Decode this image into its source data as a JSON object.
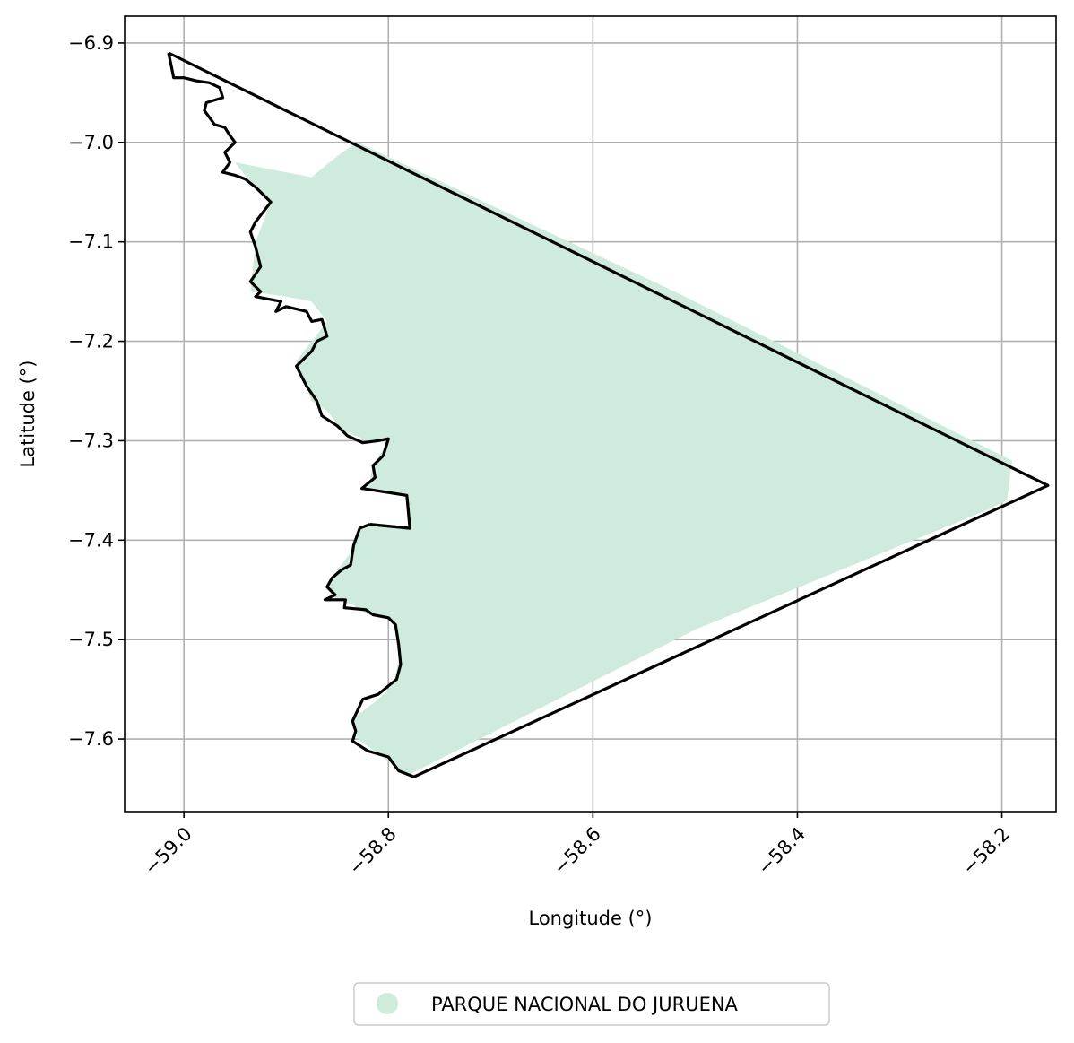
{
  "chart_data": {
    "type": "map",
    "title": "",
    "xlabel": "Longitude (°)",
    "ylabel": "Latitude (°)",
    "xlim": [
      -59.058,
      -58.147
    ],
    "ylim": [
      -7.673,
      -6.873
    ],
    "xticks": [
      -59.0,
      -58.8,
      -58.6,
      -58.4,
      -58.2
    ],
    "xtick_labels": [
      "−59.0",
      "−58.8",
      "−58.6",
      "−58.4",
      "−58.2"
    ],
    "yticks": [
      -6.9,
      -7.0,
      -7.1,
      -7.2,
      -7.3,
      -7.4,
      -7.5,
      -7.6
    ],
    "ytick_labels": [
      "−6.9",
      "−7.0",
      "−7.1",
      "−7.2",
      "−7.3",
      "−7.4",
      "−7.5",
      "−7.6"
    ],
    "grid": true,
    "legend_position": "bottom-center",
    "series": [
      {
        "name": "PARQUE NACIONAL DO JURUENA",
        "fill_color": "#cfebdd",
        "edge_color": "#000000",
        "fill_polygon": [
          [
            -58.95,
            -7.02
          ],
          [
            -58.9,
            -7.03
          ],
          [
            -58.875,
            -7.035
          ],
          [
            -58.86,
            -7.022
          ],
          [
            -58.845,
            -7.01
          ],
          [
            -58.83,
            -7.0
          ],
          [
            -58.52,
            -7.15
          ],
          [
            -58.19,
            -7.32
          ],
          [
            -58.195,
            -7.36
          ],
          [
            -58.215,
            -7.37
          ],
          [
            -58.5,
            -7.49
          ],
          [
            -58.78,
            -7.636
          ],
          [
            -58.79,
            -7.63
          ],
          [
            -58.81,
            -7.615
          ],
          [
            -58.83,
            -7.6
          ],
          [
            -58.835,
            -7.58
          ],
          [
            -58.81,
            -7.56
          ],
          [
            -58.795,
            -7.545
          ],
          [
            -58.79,
            -7.52
          ],
          [
            -58.795,
            -7.48
          ],
          [
            -58.82,
            -7.475
          ],
          [
            -58.835,
            -7.465
          ],
          [
            -58.85,
            -7.46
          ],
          [
            -58.86,
            -7.45
          ],
          [
            -58.85,
            -7.43
          ],
          [
            -58.835,
            -7.41
          ],
          [
            -58.83,
            -7.39
          ],
          [
            -58.82,
            -7.385
          ],
          [
            -58.78,
            -7.385
          ],
          [
            -58.78,
            -7.355
          ],
          [
            -58.82,
            -7.35
          ],
          [
            -58.815,
            -7.325
          ],
          [
            -58.8,
            -7.3
          ],
          [
            -58.82,
            -7.3
          ],
          [
            -58.845,
            -7.29
          ],
          [
            -58.86,
            -7.27
          ],
          [
            -58.875,
            -7.26
          ],
          [
            -58.89,
            -7.22
          ],
          [
            -58.875,
            -7.2
          ],
          [
            -58.86,
            -7.18
          ],
          [
            -58.875,
            -7.16
          ],
          [
            -58.9,
            -7.155
          ],
          [
            -58.935,
            -7.15
          ],
          [
            -58.93,
            -7.1
          ],
          [
            -58.915,
            -7.06
          ],
          [
            -58.935,
            -7.04
          ],
          [
            -58.95,
            -7.02
          ]
        ],
        "outline": [
          [
            -59.015,
            -6.91
          ],
          [
            -59.012,
            -6.925
          ],
          [
            -59.01,
            -6.935
          ],
          [
            -59.0,
            -6.935
          ],
          [
            -58.988,
            -6.938
          ],
          [
            -58.975,
            -6.94
          ],
          [
            -58.965,
            -6.945
          ],
          [
            -58.962,
            -6.955
          ],
          [
            -58.978,
            -6.96
          ],
          [
            -58.98,
            -6.968
          ],
          [
            -58.975,
            -6.975
          ],
          [
            -58.97,
            -6.982
          ],
          [
            -58.96,
            -6.985
          ],
          [
            -58.955,
            -6.993
          ],
          [
            -58.95,
            -7.0
          ],
          [
            -58.96,
            -7.01
          ],
          [
            -58.955,
            -7.02
          ],
          [
            -58.962,
            -7.03
          ],
          [
            -58.95,
            -7.033
          ],
          [
            -58.94,
            -7.037
          ],
          [
            -58.93,
            -7.045
          ],
          [
            -58.915,
            -7.06
          ],
          [
            -58.93,
            -7.08
          ],
          [
            -58.935,
            -7.09
          ],
          [
            -58.93,
            -7.105
          ],
          [
            -58.925,
            -7.125
          ],
          [
            -58.935,
            -7.14
          ],
          [
            -58.925,
            -7.15
          ],
          [
            -58.93,
            -7.155
          ],
          [
            -58.905,
            -7.16
          ],
          [
            -58.91,
            -7.17
          ],
          [
            -58.9,
            -7.165
          ],
          [
            -58.88,
            -7.17
          ],
          [
            -58.875,
            -7.18
          ],
          [
            -58.865,
            -7.178
          ],
          [
            -58.86,
            -7.195
          ],
          [
            -58.87,
            -7.2
          ],
          [
            -58.875,
            -7.21
          ],
          [
            -58.885,
            -7.22
          ],
          [
            -58.89,
            -7.225
          ],
          [
            -58.88,
            -7.245
          ],
          [
            -58.87,
            -7.26
          ],
          [
            -58.865,
            -7.275
          ],
          [
            -58.85,
            -7.285
          ],
          [
            -58.84,
            -7.295
          ],
          [
            -58.825,
            -7.302
          ],
          [
            -58.81,
            -7.3
          ],
          [
            -58.8,
            -7.298
          ],
          [
            -58.805,
            -7.315
          ],
          [
            -58.815,
            -7.325
          ],
          [
            -58.813,
            -7.337
          ],
          [
            -58.826,
            -7.348
          ],
          [
            -58.782,
            -7.355
          ],
          [
            -58.779,
            -7.388
          ],
          [
            -58.818,
            -7.384
          ],
          [
            -58.828,
            -7.388
          ],
          [
            -58.834,
            -7.405
          ],
          [
            -58.837,
            -7.425
          ],
          [
            -58.846,
            -7.43
          ],
          [
            -58.855,
            -7.438
          ],
          [
            -58.86,
            -7.447
          ],
          [
            -58.852,
            -7.455
          ],
          [
            -58.862,
            -7.46
          ],
          [
            -58.842,
            -7.46
          ],
          [
            -58.843,
            -7.468
          ],
          [
            -58.822,
            -7.47
          ],
          [
            -58.815,
            -7.475
          ],
          [
            -58.8,
            -7.478
          ],
          [
            -58.793,
            -7.485
          ],
          [
            -58.79,
            -7.505
          ],
          [
            -58.788,
            -7.525
          ],
          [
            -58.792,
            -7.54
          ],
          [
            -58.81,
            -7.555
          ],
          [
            -58.825,
            -7.56
          ],
          [
            -58.835,
            -7.582
          ],
          [
            -58.832,
            -7.592
          ],
          [
            -58.835,
            -7.602
          ],
          [
            -58.82,
            -7.612
          ],
          [
            -58.8,
            -7.618
          ],
          [
            -58.79,
            -7.632
          ],
          [
            -58.775,
            -7.638
          ],
          [
            -58.155,
            -7.345
          ],
          [
            -59.015,
            -6.91
          ]
        ],
        "patch": [
          [
            -58.825,
            -7.348
          ],
          [
            -58.782,
            -7.355
          ],
          [
            -58.779,
            -7.388
          ],
          [
            -58.818,
            -7.384
          ]
        ]
      }
    ]
  }
}
